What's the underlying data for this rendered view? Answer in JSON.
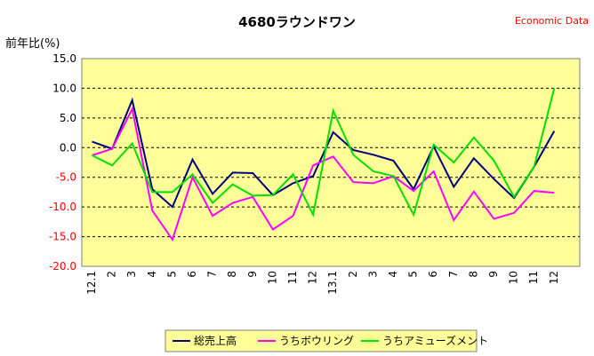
{
  "chart_data": {
    "type": "line",
    "title": "4680ラウンドワン",
    "source_label": "Economic Data",
    "ylabel": "前年比(%)",
    "xlabel": "",
    "ylim": [
      -20,
      15
    ],
    "yticks": [
      "15.0",
      "10.0",
      "5.0",
      "0.0",
      "-5.0",
      "-10.0",
      "-15.0",
      "-20.0"
    ],
    "ytick_values": [
      15,
      10,
      5,
      0,
      -5,
      -10,
      -15,
      -20
    ],
    "grid": "horizontal dashed",
    "legend_position": "bottom",
    "categories": [
      "12.1",
      "2",
      "3",
      "4",
      "5",
      "6",
      "7",
      "8",
      "9",
      "10",
      "11",
      "12",
      "13.1",
      "2",
      "3",
      "4",
      "5",
      "6",
      "7",
      "8",
      "9",
      "10",
      "11",
      "12"
    ],
    "series": [
      {
        "name": "総売上高",
        "color": "#000080",
        "values": [
          1.0,
          -0.2,
          8.0,
          -7.0,
          -10.0,
          -2.0,
          -7.8,
          -4.2,
          -4.3,
          -8.0,
          -6.0,
          -4.8,
          2.6,
          -0.4,
          -1.2,
          -2.2,
          -7.0,
          0.2,
          -6.6,
          -1.8,
          -5.3,
          -8.5,
          -3.2,
          2.8
        ]
      },
      {
        "name": "うちボウリング",
        "color": "#ff00ff",
        "values": [
          -1.3,
          -0.2,
          6.5,
          -10.6,
          -15.5,
          -5.0,
          -11.5,
          -9.3,
          -8.3,
          -13.8,
          -11.5,
          -3.0,
          -1.5,
          -5.8,
          -6.0,
          -4.8,
          -7.3,
          -4.0,
          -12.2,
          -7.4,
          -12.0,
          -11.0,
          -7.3,
          -7.6
        ]
      },
      {
        "name": "うちアミューズメント",
        "color": "#00e000",
        "values": [
          -1.3,
          -3.0,
          0.7,
          -7.5,
          -7.5,
          -4.5,
          -9.3,
          -6.2,
          -8.1,
          -8.0,
          -4.5,
          -11.3,
          6.2,
          -1.2,
          -4.0,
          -4.8,
          -11.3,
          0.5,
          -2.5,
          1.7,
          -2.2,
          -8.3,
          -3.2,
          10.0
        ]
      }
    ]
  }
}
